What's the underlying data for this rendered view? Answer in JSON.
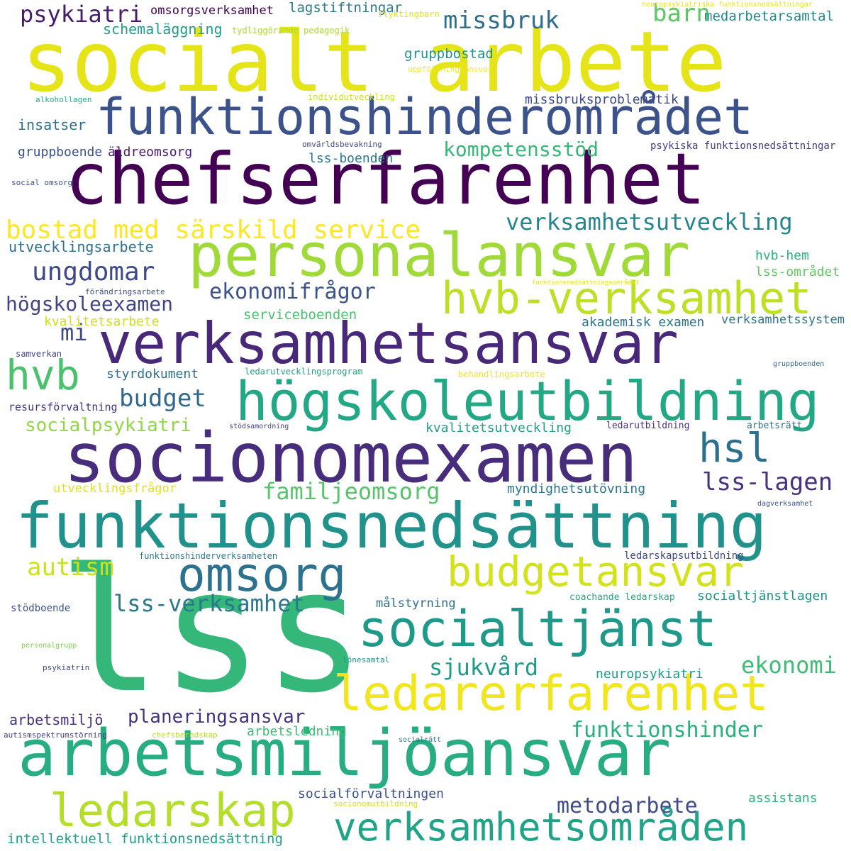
{
  "words": [
    {
      "text": "socialt arbete",
      "color": "#e5e419"
    },
    {
      "text": "chefserfarenhet",
      "color": "#440154"
    },
    {
      "text": "funktionshinderområdet",
      "color": "#3b528b"
    },
    {
      "text": "personalansvar",
      "color": "#a0da39"
    },
    {
      "text": "verksamhetsansvar",
      "color": "#482878"
    },
    {
      "text": "hvb-verksamhet",
      "color": "#bddf26"
    },
    {
      "text": "högskoleutbildning",
      "color": "#22a884"
    },
    {
      "text": "socionomexamen",
      "color": "#472d7b"
    },
    {
      "text": "funktionsnedsättning",
      "color": "#21918c"
    },
    {
      "text": "lss",
      "color": "#35b779"
    },
    {
      "text": "omsorg",
      "color": "#2c728e"
    },
    {
      "text": "budgetansvar",
      "color": "#d2e21b"
    },
    {
      "text": "socialtjänst",
      "color": "#1f9a8a"
    },
    {
      "text": "ledarerfarenhet",
      "color": "#f1e51d"
    },
    {
      "text": "arbetsmiljöansvar",
      "color": "#27ad81"
    },
    {
      "text": "ledarskap",
      "color": "#b5de2b"
    },
    {
      "text": "verksamhetsområden",
      "color": "#20a386"
    },
    {
      "text": "psykiatri",
      "color": "#481a6c"
    },
    {
      "text": "missbruk",
      "color": "#2e6e8e"
    },
    {
      "text": "barn",
      "color": "#5ec962"
    },
    {
      "text": "ungdomar",
      "color": "#3e4989"
    },
    {
      "text": "ekonomifrågor",
      "color": "#3b528b"
    },
    {
      "text": "bostad med särskild service",
      "color": "#fde725"
    },
    {
      "text": "verksamhetsutveckling",
      "color": "#25858e"
    },
    {
      "text": "högskoleexamen",
      "color": "#414487"
    },
    {
      "text": "hvb",
      "color": "#4ac16d"
    },
    {
      "text": "mi",
      "color": "#3e4a89"
    },
    {
      "text": "budget",
      "color": "#31688e"
    },
    {
      "text": "hsl",
      "color": "#2d708e"
    },
    {
      "text": "lss-lagen",
      "color": "#46327e"
    },
    {
      "text": "familjeomsorg",
      "color": "#54c568"
    },
    {
      "text": "autism",
      "color": "#cae11f"
    },
    {
      "text": "lss-verksamhet",
      "color": "#2a788e"
    },
    {
      "text": "sjukvård",
      "color": "#1e9b8a"
    },
    {
      "text": "ekonomi",
      "color": "#3dbc74"
    },
    {
      "text": "planeringsansvar",
      "color": "#46337f"
    },
    {
      "text": "funktionshinder",
      "color": "#29af7f"
    },
    {
      "text": "metodarbete",
      "color": "#3e4c8a"
    },
    {
      "text": "kompetensstöd",
      "color": "#37b878"
    },
    {
      "text": "socialpsykiatri",
      "color": "#8fd744"
    },
    {
      "text": "omsorgsverksamhet",
      "color": "#440154"
    },
    {
      "text": "lagstiftningar",
      "color": "#287c8e"
    },
    {
      "text": "schemaläggning",
      "color": "#1fa088"
    },
    {
      "text": "tydliggörande pedagogik",
      "color": "#a8db34"
    },
    {
      "text": "flyktingbarn",
      "color": "#e5e419"
    },
    {
      "text": "medarbetarsamtal",
      "color": "#23898e"
    },
    {
      "text": "neuropsykiatriska funktionsnedsättningar",
      "color": "#e7e419"
    },
    {
      "text": "gruppbostad",
      "color": "#20928c"
    },
    {
      "text": "uppföljningsansvar",
      "color": "#f8e621"
    },
    {
      "text": "individutveckling",
      "color": "#cde11d"
    },
    {
      "text": "alkohollagen",
      "color": "#25ab82"
    },
    {
      "text": "missbruksproblematik",
      "color": "#3e4a89"
    },
    {
      "text": "insatser",
      "color": "#2e6f8e"
    },
    {
      "text": "gruppboende",
      "color": "#3a538b"
    },
    {
      "text": "äldreomsorg",
      "color": "#481b6d"
    },
    {
      "text": "omvärldsbevakning",
      "color": "#3e4a89"
    },
    {
      "text": "psykiska funktionsnedsättningar",
      "color": "#433e85"
    },
    {
      "text": "lss-boenden",
      "color": "#2a788e"
    },
    {
      "text": "social omsorg",
      "color": "#3b528b"
    },
    {
      "text": "utvecklingsarbete",
      "color": "#2d718e"
    },
    {
      "text": "hvb-hem",
      "color": "#2ab07f"
    },
    {
      "text": "lss-området",
      "color": "#60ca60"
    },
    {
      "text": "förändringsarbete",
      "color": "#3c4f8a"
    },
    {
      "text": "funktionsnedsättningsområdet",
      "color": "#e8e419"
    },
    {
      "text": "serviceboenden",
      "color": "#4ac16d"
    },
    {
      "text": "kvalitetsarbete",
      "color": "#cfe11c"
    },
    {
      "text": "akademisk examen",
      "color": "#2c738e"
    },
    {
      "text": "verksamhetssystem",
      "color": "#2a768e"
    },
    {
      "text": "samverkan",
      "color": "#3f4788"
    },
    {
      "text": "styrdokument",
      "color": "#2d708e"
    },
    {
      "text": "ledarutvecklingsprogram",
      "color": "#20a386"
    },
    {
      "text": "behandlingsarbete",
      "color": "#f4e61e"
    },
    {
      "text": "gruppboenden",
      "color": "#31688e"
    },
    {
      "text": "resursförvaltning",
      "color": "#46327e"
    },
    {
      "text": "stödsamordning",
      "color": "#414487"
    },
    {
      "text": "kvalitetsutveckling",
      "color": "#1f9e89"
    },
    {
      "text": "ledarutbildning",
      "color": "#46327e"
    },
    {
      "text": "arbetsrätt",
      "color": "#2d708e"
    },
    {
      "text": "utvecklingsfrågor",
      "color": "#e0e318"
    },
    {
      "text": "myndighetsutövning",
      "color": "#2a788e"
    },
    {
      "text": "dagverksamhet",
      "color": "#3a538b"
    },
    {
      "text": "funktionshinderverksamheten",
      "color": "#2a788e"
    },
    {
      "text": "ledarskapsutbildning",
      "color": "#3e4989"
    },
    {
      "text": "målstyrning",
      "color": "#2d708e"
    },
    {
      "text": "coachande ledarskap",
      "color": "#22a884"
    },
    {
      "text": "socialtjänstlagen",
      "color": "#20928c"
    },
    {
      "text": "stödboende",
      "color": "#3b528b"
    },
    {
      "text": "personalgrupp",
      "color": "#7ad151"
    },
    {
      "text": "psykiatrin",
      "color": "#3f4788"
    },
    {
      "text": "lönesamtal",
      "color": "#21918c"
    },
    {
      "text": "neuropsykiatri",
      "color": "#1f9e89"
    },
    {
      "text": "arbetsmiljö",
      "color": "#472f7d"
    },
    {
      "text": "autismspektrumstörning",
      "color": "#433e85"
    },
    {
      "text": "socialrätt",
      "color": "#2d708e"
    },
    {
      "text": "chefsberedskap",
      "color": "#b8de29"
    },
    {
      "text": "arbetsledning",
      "color": "#3fbc73"
    },
    {
      "text": "socialförvaltningen",
      "color": "#3b528b"
    },
    {
      "text": "socionomutbildning",
      "color": "#d5e21a"
    },
    {
      "text": "assistans",
      "color": "#2ab07f"
    },
    {
      "text": "intellektuell funktionsnedsättning",
      "color": "#1fa187"
    }
  ]
}
